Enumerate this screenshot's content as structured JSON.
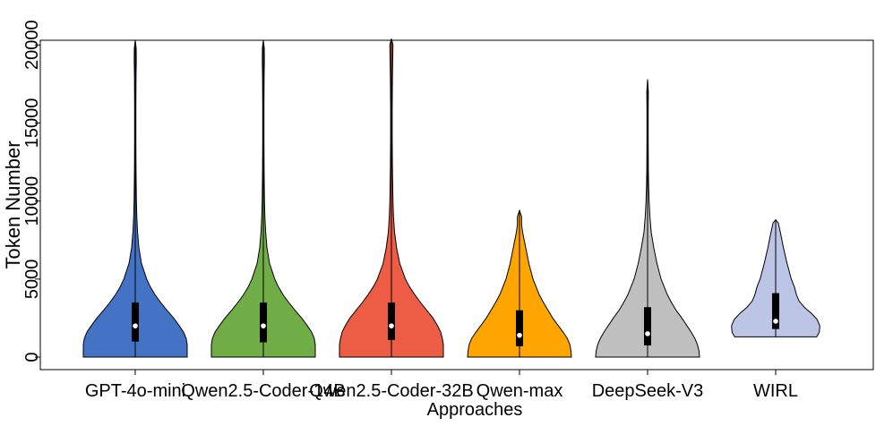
{
  "chart_data": {
    "type": "violin",
    "title": "",
    "xlabel": "Approaches",
    "ylabel": "Token Number",
    "ylim": [
      -800,
      20300
    ],
    "yticks": [
      0,
      5000,
      10000,
      15000,
      20000
    ],
    "ytick_labels": [
      "0",
      "5000",
      "10000",
      "15000",
      "20000"
    ],
    "grid": false,
    "legend": "none",
    "box_color": "#000000",
    "median_color": "#ffffff",
    "categories": [
      "GPT-4o-mini",
      "Qwen2.5-Coder-14B",
      "Qwen2.5-Coder-32B",
      "Qwen-max",
      "DeepSeek-V3",
      "WIRL"
    ],
    "series": [
      {
        "category": "GPT-4o-mini",
        "color": "#4472c4",
        "min": 0,
        "q1": 1000,
        "median": 2000,
        "q3": 3500,
        "max": 20300,
        "density": [
          [
            0,
            1.0
          ],
          [
            400,
            1.0
          ],
          [
            800,
            1.0
          ],
          [
            1200,
            0.98
          ],
          [
            1600,
            0.93
          ],
          [
            2000,
            0.85
          ],
          [
            2500,
            0.74
          ],
          [
            3000,
            0.61
          ],
          [
            3500,
            0.49
          ],
          [
            4000,
            0.38
          ],
          [
            4500,
            0.29
          ],
          [
            5000,
            0.22
          ],
          [
            6000,
            0.12
          ],
          [
            7000,
            0.07
          ],
          [
            8000,
            0.045
          ],
          [
            9000,
            0.03
          ],
          [
            10000,
            0.022
          ],
          [
            12000,
            0.015
          ],
          [
            14000,
            0.012
          ],
          [
            16000,
            0.012
          ],
          [
            18000,
            0.015
          ],
          [
            19000,
            0.02
          ],
          [
            19800,
            0.018
          ],
          [
            20300,
            0
          ]
        ]
      },
      {
        "category": "Qwen2.5-Coder-14B",
        "color": "#70ad47",
        "min": 0,
        "q1": 950,
        "median": 2000,
        "q3": 3500,
        "max": 20300,
        "density": [
          [
            0,
            1.0
          ],
          [
            400,
            1.0
          ],
          [
            800,
            1.0
          ],
          [
            1200,
            0.98
          ],
          [
            1600,
            0.93
          ],
          [
            2000,
            0.85
          ],
          [
            2500,
            0.74
          ],
          [
            3000,
            0.61
          ],
          [
            3500,
            0.49
          ],
          [
            4000,
            0.38
          ],
          [
            4500,
            0.29
          ],
          [
            5000,
            0.22
          ],
          [
            6000,
            0.12
          ],
          [
            7000,
            0.07
          ],
          [
            8000,
            0.045
          ],
          [
            9000,
            0.03
          ],
          [
            10000,
            0.022
          ],
          [
            12000,
            0.015
          ],
          [
            14000,
            0.012
          ],
          [
            16000,
            0.012
          ],
          [
            18000,
            0.015
          ],
          [
            19000,
            0.02
          ],
          [
            19800,
            0.018
          ],
          [
            20300,
            0
          ]
        ]
      },
      {
        "category": "Qwen2.5-Coder-32B",
        "color": "#ed5c45",
        "min": 0,
        "q1": 1100,
        "median": 2000,
        "q3": 3500,
        "max": 20400,
        "density": [
          [
            0,
            1.0
          ],
          [
            400,
            1.0
          ],
          [
            800,
            1.0
          ],
          [
            1200,
            0.98
          ],
          [
            1600,
            0.95
          ],
          [
            2000,
            0.89
          ],
          [
            2500,
            0.8
          ],
          [
            3000,
            0.68
          ],
          [
            3500,
            0.56
          ],
          [
            4000,
            0.45
          ],
          [
            4500,
            0.35
          ],
          [
            5000,
            0.27
          ],
          [
            6000,
            0.16
          ],
          [
            7000,
            0.1
          ],
          [
            8000,
            0.06
          ],
          [
            9000,
            0.04
          ],
          [
            10000,
            0.03
          ],
          [
            12000,
            0.02
          ],
          [
            14000,
            0.015
          ],
          [
            16000,
            0.015
          ],
          [
            18000,
            0.02
          ],
          [
            19000,
            0.025
          ],
          [
            20000,
            0.03
          ],
          [
            20400,
            0
          ]
        ]
      },
      {
        "category": "Qwen-max",
        "color": "#ffa500",
        "min": 0,
        "q1": 700,
        "median": 1400,
        "q3": 3000,
        "max": 9400,
        "density": [
          [
            0,
            1.0
          ],
          [
            400,
            0.99
          ],
          [
            800,
            0.97
          ],
          [
            1200,
            0.92
          ],
          [
            1600,
            0.84
          ],
          [
            2000,
            0.75
          ],
          [
            2500,
            0.64
          ],
          [
            3000,
            0.55
          ],
          [
            3500,
            0.46
          ],
          [
            4000,
            0.38
          ],
          [
            5000,
            0.26
          ],
          [
            6000,
            0.18
          ],
          [
            7000,
            0.12
          ],
          [
            8000,
            0.06
          ],
          [
            8500,
            0.04
          ],
          [
            9000,
            0.04
          ],
          [
            9400,
            0
          ]
        ]
      },
      {
        "category": "DeepSeek-V3",
        "color": "#bfbfbf",
        "min": 0,
        "q1": 750,
        "median": 1500,
        "q3": 3200,
        "max": 17800,
        "density": [
          [
            0,
            1.0
          ],
          [
            400,
            0.99
          ],
          [
            800,
            0.96
          ],
          [
            1200,
            0.91
          ],
          [
            1600,
            0.84
          ],
          [
            2000,
            0.76
          ],
          [
            2500,
            0.66
          ],
          [
            3000,
            0.55
          ],
          [
            3500,
            0.46
          ],
          [
            4000,
            0.38
          ],
          [
            5000,
            0.26
          ],
          [
            6000,
            0.18
          ],
          [
            7000,
            0.12
          ],
          [
            8000,
            0.07
          ],
          [
            9000,
            0.045
          ],
          [
            10000,
            0.03
          ],
          [
            11000,
            0.02
          ],
          [
            12000,
            0.015
          ],
          [
            14000,
            0.012
          ],
          [
            16000,
            0.012
          ],
          [
            17000,
            0.015
          ],
          [
            17800,
            0
          ]
        ]
      },
      {
        "category": "WIRL",
        "color": "#bcc5e6",
        "min": 1300,
        "q1": 1800,
        "median": 2300,
        "q3": 4100,
        "max": 8800,
        "density": [
          [
            1300,
            0.79
          ],
          [
            1600,
            0.84
          ],
          [
            2000,
            0.85
          ],
          [
            2400,
            0.8
          ],
          [
            2800,
            0.69
          ],
          [
            3200,
            0.55
          ],
          [
            3600,
            0.45
          ],
          [
            4000,
            0.4
          ],
          [
            4500,
            0.36
          ],
          [
            5000,
            0.3
          ],
          [
            6000,
            0.22
          ],
          [
            7000,
            0.15
          ],
          [
            8000,
            0.09
          ],
          [
            8600,
            0.05
          ],
          [
            8800,
            0
          ]
        ]
      }
    ]
  }
}
